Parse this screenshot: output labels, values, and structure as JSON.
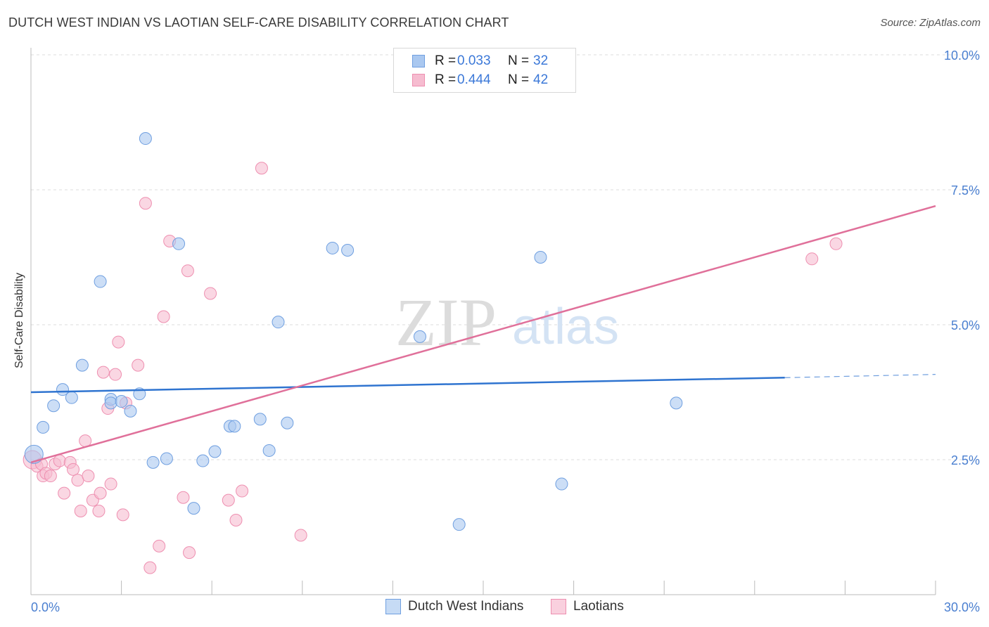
{
  "title": "DUTCH WEST INDIAN VS LAOTIAN SELF-CARE DISABILITY CORRELATION CHART",
  "source": "Source: ZipAtlas.com",
  "watermark": {
    "zip": "ZIP",
    "atlas": "atlas"
  },
  "colors": {
    "blue_fill": "#aac8f0",
    "blue_stroke": "#6f9fe0",
    "blue_line": "#2f74d0",
    "pink_fill": "#f6bcd0",
    "pink_stroke": "#ee8fb0",
    "pink_line": "#e0709a",
    "tick_text": "#4a7fd0",
    "grid": "#dddddd"
  },
  "legend": {
    "rows": [
      {
        "r_label": "R =",
        "r_value": "0.033",
        "n_label": "N =",
        "n_value": "32"
      },
      {
        "r_label": "R =",
        "r_value": "0.444",
        "n_label": "N =",
        "n_value": "42"
      }
    ]
  },
  "bottom_legend": {
    "series1": "Dutch West Indians",
    "series2": "Laotians"
  },
  "chart_data": {
    "type": "scatter",
    "title": "DUTCH WEST INDIAN VS LAOTIAN SELF-CARE DISABILITY CORRELATION CHART",
    "xlabel": "",
    "ylabel": "Self-Care Disability",
    "xlim": [
      0,
      30
    ],
    "ylim": [
      0,
      10
    ],
    "x_tick_labels": [
      "0.0%",
      "30.0%"
    ],
    "y_ticks": [
      2.5,
      5.0,
      7.5,
      10.0
    ],
    "y_tick_labels": [
      "2.5%",
      "5.0%",
      "7.5%",
      "10.0%"
    ],
    "series": [
      {
        "name": "Dutch West Indians",
        "color": "blue",
        "points": [
          [
            0.1,
            2.6
          ],
          [
            0.4,
            3.1
          ],
          [
            0.75,
            3.5
          ],
          [
            1.05,
            3.8
          ],
          [
            1.35,
            3.65
          ],
          [
            1.7,
            4.25
          ],
          [
            2.3,
            5.8
          ],
          [
            2.65,
            3.62
          ],
          [
            2.65,
            3.55
          ],
          [
            3.0,
            3.58
          ],
          [
            3.3,
            3.4
          ],
          [
            3.6,
            3.72
          ],
          [
            3.8,
            8.45
          ],
          [
            4.05,
            2.45
          ],
          [
            4.5,
            2.52
          ],
          [
            4.9,
            6.5
          ],
          [
            5.4,
            1.6
          ],
          [
            5.7,
            2.48
          ],
          [
            6.1,
            2.65
          ],
          [
            6.6,
            3.12
          ],
          [
            6.75,
            3.12
          ],
          [
            7.6,
            3.25
          ],
          [
            7.9,
            2.67
          ],
          [
            8.2,
            5.05
          ],
          [
            8.5,
            3.18
          ],
          [
            10.0,
            6.42
          ],
          [
            10.5,
            6.38
          ],
          [
            12.9,
            4.78
          ],
          [
            14.2,
            1.3
          ],
          [
            16.9,
            6.25
          ],
          [
            17.6,
            2.05
          ],
          [
            21.4,
            3.55
          ]
        ],
        "trend": {
          "x": [
            0,
            25
          ],
          "y": [
            3.75,
            4.02
          ],
          "dashed_extension": {
            "x": [
              25,
              30
            ],
            "y": [
              4.02,
              4.08
            ]
          }
        }
      },
      {
        "name": "Laotians",
        "color": "pink",
        "points": [
          [
            0.05,
            2.5
          ],
          [
            0.2,
            2.38
          ],
          [
            0.35,
            2.42
          ],
          [
            0.4,
            2.2
          ],
          [
            0.5,
            2.25
          ],
          [
            0.65,
            2.2
          ],
          [
            0.8,
            2.42
          ],
          [
            0.95,
            2.48
          ],
          [
            1.1,
            1.88
          ],
          [
            1.3,
            2.45
          ],
          [
            1.4,
            2.32
          ],
          [
            1.55,
            2.12
          ],
          [
            1.65,
            1.55
          ],
          [
            1.8,
            2.85
          ],
          [
            1.9,
            2.2
          ],
          [
            2.05,
            1.75
          ],
          [
            2.25,
            1.55
          ],
          [
            2.3,
            1.88
          ],
          [
            2.4,
            4.12
          ],
          [
            2.55,
            3.45
          ],
          [
            2.65,
            2.05
          ],
          [
            2.8,
            4.08
          ],
          [
            2.9,
            4.68
          ],
          [
            3.05,
            1.48
          ],
          [
            3.15,
            3.55
          ],
          [
            3.55,
            4.25
          ],
          [
            3.8,
            7.25
          ],
          [
            3.95,
            0.5
          ],
          [
            4.25,
            0.9
          ],
          [
            4.4,
            5.15
          ],
          [
            4.6,
            6.55
          ],
          [
            5.05,
            1.8
          ],
          [
            5.2,
            6.0
          ],
          [
            5.25,
            0.78
          ],
          [
            5.95,
            5.58
          ],
          [
            6.55,
            1.75
          ],
          [
            6.8,
            1.38
          ],
          [
            7.0,
            1.92
          ],
          [
            7.65,
            7.9
          ],
          [
            8.95,
            1.1
          ],
          [
            25.9,
            6.22
          ],
          [
            26.7,
            6.5
          ]
        ],
        "trend": {
          "x": [
            0,
            30
          ],
          "y": [
            2.45,
            7.2
          ]
        }
      }
    ]
  }
}
